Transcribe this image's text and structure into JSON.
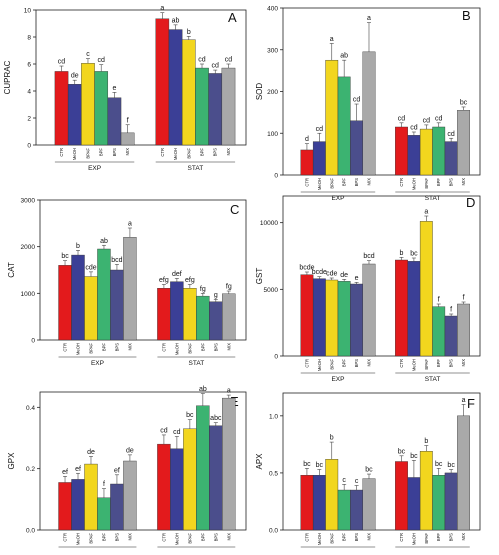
{
  "chart_data": [
    {
      "panel": "A",
      "type": "bar",
      "ylabel": "CUPRAC",
      "ylim": [
        0,
        10
      ],
      "yticks": [
        "0",
        "2",
        "4",
        "6",
        "8",
        "10"
      ],
      "groups": [
        "EXP",
        "STAT"
      ],
      "categories": [
        "CTR",
        "MeOH",
        "BPAF",
        "BPF",
        "BPS",
        "MIX"
      ],
      "values": [
        [
          5.45,
          4.5,
          6.05,
          5.45,
          3.5,
          0.9
        ],
        [
          9.35,
          8.55,
          7.8,
          5.7,
          5.3,
          5.7
        ]
      ],
      "errors": [
        [
          0.4,
          0.3,
          0.35,
          0.5,
          0.4,
          0.6
        ],
        [
          0.45,
          0.35,
          0.25,
          0.3,
          0.25,
          0.3
        ]
      ],
      "letters": [
        [
          "cd",
          "de",
          "c",
          "cd",
          "e",
          "f"
        ],
        [
          "a",
          "ab",
          "b",
          "cd",
          "cd",
          "cd"
        ]
      ]
    },
    {
      "panel": "B",
      "type": "bar",
      "ylabel": "SOD",
      "ylim": [
        0,
        400
      ],
      "yticks": [
        "0",
        "100",
        "200",
        "300",
        "400"
      ],
      "groups": [
        "EXP",
        "STAT"
      ],
      "categories": [
        "CTR",
        "MeOH",
        "BPAF",
        "BPF",
        "BPS",
        "MIX"
      ],
      "values": [
        [
          60,
          80,
          275,
          235,
          130,
          295
        ],
        [
          115,
          95,
          110,
          115,
          80,
          155
        ]
      ],
      "errors": [
        [
          15,
          20,
          40,
          40,
          40,
          70
        ],
        [
          10,
          8,
          10,
          10,
          8,
          8
        ]
      ],
      "letters": [
        [
          "d",
          "cd",
          "a",
          "ab",
          "cd",
          "a"
        ],
        [
          "cd",
          "cd",
          "cd",
          "cd",
          "cd",
          "bc"
        ]
      ]
    },
    {
      "panel": "C",
      "type": "bar",
      "ylabel": "CAT",
      "ylim": [
        0,
        3000
      ],
      "yticks": [
        "0",
        "1000",
        "2000",
        "3000"
      ],
      "groups": [
        "EXP",
        "STAT"
      ],
      "categories": [
        "CTR",
        "MeOH",
        "BPAF",
        "BPF",
        "BPS",
        "MIX"
      ],
      "values": [
        [
          1600,
          1820,
          1360,
          1950,
          1500,
          2200
        ],
        [
          1110,
          1250,
          1110,
          940,
          820,
          990
        ]
      ],
      "errors": [
        [
          100,
          100,
          100,
          80,
          120,
          200
        ],
        [
          80,
          70,
          80,
          60,
          50,
          60
        ]
      ],
      "letters": [
        [
          "bc",
          "b",
          "cde",
          "ab",
          "bcd",
          "a"
        ],
        [
          "efg",
          "def",
          "efg",
          "fg",
          "g",
          "fg"
        ]
      ]
    },
    {
      "panel": "D",
      "type": "bar",
      "ylabel": "GST",
      "ylim": [
        0,
        12000
      ],
      "yticks": [
        "0",
        "5000",
        "10000"
      ],
      "groups": [
        "EXP",
        "STAT"
      ],
      "categories": [
        "CTR",
        "MeOH",
        "BPAF",
        "BPF",
        "BPS",
        "MIX"
      ],
      "values": [
        [
          6100,
          5800,
          5700,
          5600,
          5400,
          6900
        ],
        [
          7200,
          7100,
          10100,
          3700,
          3000,
          3900
        ]
      ],
      "errors": [
        [
          200,
          150,
          150,
          150,
          120,
          250
        ],
        [
          200,
          250,
          400,
          200,
          150,
          150
        ]
      ],
      "letters": [
        [
          "bcde",
          "bcde",
          "cde",
          "de",
          "e",
          "bcd"
        ],
        [
          "b",
          "bc",
          "a",
          "f",
          "f",
          "f"
        ]
      ]
    },
    {
      "panel": "E",
      "type": "bar",
      "ylabel": "GPX",
      "ylim": [
        0,
        0.45
      ],
      "yticks": [
        "0.0",
        "0.2",
        "0.4"
      ],
      "groups": [
        "EXP",
        "STAT"
      ],
      "categories": [
        "CTR",
        "MeOH",
        "BPAF",
        "BPF",
        "BPS",
        "MIX"
      ],
      "values": [
        [
          0.155,
          0.165,
          0.215,
          0.105,
          0.15,
          0.225
        ],
        [
          0.28,
          0.265,
          0.33,
          0.405,
          0.34,
          0.43
        ]
      ],
      "errors": [
        [
          0.02,
          0.02,
          0.025,
          0.03,
          0.03,
          0.02
        ],
        [
          0.03,
          0.04,
          0.03,
          0.04,
          0.01,
          0.01
        ]
      ],
      "letters": [
        [
          "ef",
          "ef",
          "de",
          "f",
          "ef",
          "de"
        ],
        [
          "cd",
          "cd",
          "bc",
          "ab",
          "abc",
          "a"
        ]
      ]
    },
    {
      "panel": "F",
      "type": "bar",
      "ylabel": "APX",
      "ylim": [
        0,
        1.2
      ],
      "yticks": [
        "0.0",
        "0.5",
        "1.0"
      ],
      "groups": [
        "EXP",
        "STAT"
      ],
      "categories": [
        "CTR",
        "MeOH",
        "BPAF",
        "BPF",
        "BPS",
        "MIX"
      ],
      "values": [
        [
          0.48,
          0.48,
          0.62,
          0.35,
          0.35,
          0.45
        ],
        [
          0.6,
          0.46,
          0.69,
          0.48,
          0.5,
          1.0
        ]
      ],
      "errors": [
        [
          0.06,
          0.05,
          0.15,
          0.05,
          0.04,
          0.04
        ],
        [
          0.05,
          0.15,
          0.05,
          0.06,
          0.03,
          0.1
        ]
      ],
      "letters": [
        [
          "bc",
          "bc",
          "b",
          "c",
          "c",
          "bc"
        ],
        [
          "bc",
          "bc",
          "b",
          "bc",
          "bc",
          "a"
        ]
      ]
    }
  ],
  "colors": [
    "#e31a1c",
    "#3b3f96",
    "#f2d61e",
    "#3cb371",
    "#4b4e8c",
    "#a9a9a9"
  ],
  "highlight_color": "#cc1a9a"
}
